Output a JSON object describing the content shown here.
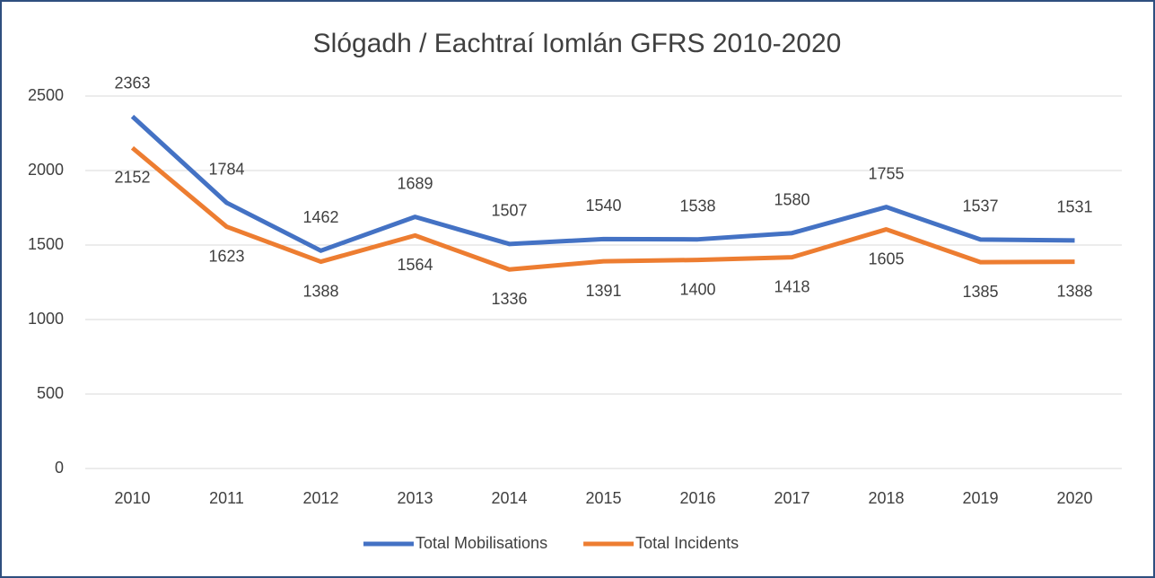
{
  "chart_data": {
    "type": "line",
    "title": "Slógadh / Eachtraí Iomlán GFRS 2010-2020",
    "categories": [
      "2010",
      "2011",
      "2012",
      "2013",
      "2014",
      "2015",
      "2016",
      "2017",
      "2018",
      "2019",
      "2020"
    ],
    "series": [
      {
        "name": "Total Mobilisations",
        "color": "#4472c4",
        "values": [
          2363,
          1784,
          1462,
          1689,
          1507,
          1540,
          1538,
          1580,
          1755,
          1537,
          1531
        ]
      },
      {
        "name": "Total Incidents",
        "color": "#ed7d31",
        "values": [
          2152,
          1623,
          1388,
          1564,
          1336,
          1391,
          1400,
          1418,
          1605,
          1385,
          1388
        ]
      }
    ],
    "ylim": [
      0,
      2500
    ],
    "yticks": [
      0,
      500,
      1000,
      1500,
      2000,
      2500
    ],
    "grid": true,
    "legend": "bottom"
  }
}
